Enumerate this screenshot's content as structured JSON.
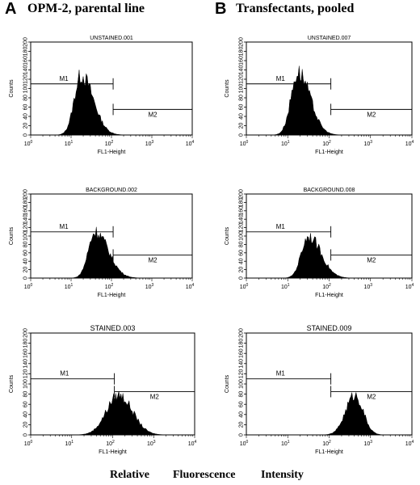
{
  "panel_labels": {
    "left_letter": "A",
    "left_title": "OPM-2, parental line",
    "right_letter": "B",
    "right_title": "Transfectants, pooled"
  },
  "footer": {
    "word1": "Relative",
    "word2": "Fluorescence",
    "word3": "Intensity"
  },
  "chart_data": [
    {
      "type": "histogram",
      "title": "UNSTAINED.001",
      "xlabel": "FL1-Height",
      "ylabel": "Counts",
      "x_scale": "log",
      "xlim": [
        1,
        10000
      ],
      "ylim": [
        0,
        200
      ],
      "yticks": [
        "0",
        "20",
        "40",
        "60",
        "80",
        "100",
        "120",
        "140",
        "160",
        "180",
        "200"
      ],
      "xticks": [
        {
          "base": "10",
          "exp": "0"
        },
        {
          "base": "10",
          "exp": "1"
        },
        {
          "base": "10",
          "exp": "2"
        },
        {
          "base": "10",
          "exp": "3"
        },
        {
          "base": "10",
          "exp": "4"
        }
      ],
      "peak": {
        "center_log10": 1.25,
        "height": 128,
        "width_left": 0.17,
        "width_right": 0.3
      },
      "gates": [
        {
          "name": "M1",
          "from": 1,
          "to": 110,
          "y": 110
        },
        {
          "name": "M2",
          "from": 110,
          "to": 10000,
          "y": 55
        }
      ]
    },
    {
      "type": "histogram",
      "title": "BACKGROUND.002",
      "xlabel": "FL1-Height",
      "ylabel": "Counts",
      "x_scale": "log",
      "xlim": [
        1,
        10000
      ],
      "ylim": [
        0,
        200
      ],
      "yticks": [
        "0",
        "20",
        "40",
        "60",
        "80",
        "100",
        "120",
        "140",
        "160",
        "180",
        "200"
      ],
      "xticks": [
        {
          "base": "10",
          "exp": "0"
        },
        {
          "base": "10",
          "exp": "1"
        },
        {
          "base": "10",
          "exp": "2"
        },
        {
          "base": "10",
          "exp": "3"
        },
        {
          "base": "10",
          "exp": "4"
        }
      ],
      "peak": {
        "center_log10": 1.6,
        "height": 110,
        "width_left": 0.17,
        "width_right": 0.32
      },
      "gates": [
        {
          "name": "M1",
          "from": 1,
          "to": 110,
          "y": 110
        },
        {
          "name": "M2",
          "from": 110,
          "to": 10000,
          "y": 55
        }
      ]
    },
    {
      "type": "histogram",
      "title": "STAINED.003",
      "xlabel": "FL1-Height",
      "ylabel": "Counts",
      "x_scale": "log",
      "xlim": [
        1,
        10000
      ],
      "ylim": [
        0,
        200
      ],
      "yticks": [
        "0",
        "20",
        "40",
        "60",
        "80",
        "100",
        "120",
        "140",
        "160",
        "180",
        "200"
      ],
      "xticks": [
        {
          "base": "10",
          "exp": "0"
        },
        {
          "base": "10",
          "exp": "1"
        },
        {
          "base": "10",
          "exp": "2"
        },
        {
          "base": "10",
          "exp": "3"
        },
        {
          "base": "10",
          "exp": "4"
        }
      ],
      "peak": {
        "center_log10": 2.15,
        "height": 78,
        "width_left": 0.3,
        "width_right": 0.33
      },
      "gates": [
        {
          "name": "M1",
          "from": 1,
          "to": 110,
          "y": 110
        },
        {
          "name": "M2",
          "from": 110,
          "to": 10000,
          "y": 85
        }
      ]
    },
    {
      "type": "histogram",
      "title": "UNSTAINED.007",
      "xlabel": "FL1-Height",
      "ylabel": "Counts",
      "x_scale": "log",
      "xlim": [
        1,
        10000
      ],
      "ylim": [
        0,
        200
      ],
      "yticks": [
        "0",
        "20",
        "40",
        "60",
        "80",
        "100",
        "120",
        "140",
        "160",
        "180",
        "200"
      ],
      "xticks": [
        {
          "base": "10",
          "exp": "0"
        },
        {
          "base": "10",
          "exp": "1"
        },
        {
          "base": "10",
          "exp": "2"
        },
        {
          "base": "10",
          "exp": "3"
        },
        {
          "base": "10",
          "exp": "4"
        }
      ],
      "peak": {
        "center_log10": 1.25,
        "height": 135,
        "width_left": 0.17,
        "width_right": 0.29
      },
      "gates": [
        {
          "name": "M1",
          "from": 1,
          "to": 110,
          "y": 110
        },
        {
          "name": "M2",
          "from": 110,
          "to": 10000,
          "y": 55
        }
      ]
    },
    {
      "type": "histogram",
      "title": "BACKGROUND.008",
      "xlabel": "FL1-Height",
      "ylabel": "Counts",
      "x_scale": "log",
      "xlim": [
        1,
        10000
      ],
      "ylim": [
        0,
        200
      ],
      "yticks": [
        "0",
        "20",
        "40",
        "60",
        "80",
        "100",
        "120",
        "140",
        "160",
        "180",
        "200"
      ],
      "xticks": [
        {
          "base": "10",
          "exp": "0"
        },
        {
          "base": "10",
          "exp": "1"
        },
        {
          "base": "10",
          "exp": "2"
        },
        {
          "base": "10",
          "exp": "3"
        },
        {
          "base": "10",
          "exp": "4"
        }
      ],
      "peak": {
        "center_log10": 1.5,
        "height": 100,
        "width_left": 0.17,
        "width_right": 0.3
      },
      "gates": [
        {
          "name": "M1",
          "from": 1,
          "to": 110,
          "y": 110
        },
        {
          "name": "M2",
          "from": 110,
          "to": 10000,
          "y": 55
        }
      ]
    },
    {
      "type": "histogram",
      "title": "STAINED.009",
      "xlabel": "FL1-Height",
      "ylabel": "Counts",
      "x_scale": "log",
      "xlim": [
        1,
        10000
      ],
      "ylim": [
        0,
        200
      ],
      "yticks": [
        "0",
        "20",
        "40",
        "60",
        "80",
        "100",
        "120",
        "140",
        "160",
        "180",
        "200"
      ],
      "xticks": [
        {
          "base": "10",
          "exp": "0"
        },
        {
          "base": "10",
          "exp": "1"
        },
        {
          "base": "10",
          "exp": "2"
        },
        {
          "base": "10",
          "exp": "3"
        },
        {
          "base": "10",
          "exp": "4"
        }
      ],
      "peak": {
        "center_log10": 2.62,
        "height": 78,
        "width_left": 0.22,
        "width_right": 0.2
      },
      "gates": [
        {
          "name": "M1",
          "from": 1,
          "to": 110,
          "y": 110
        },
        {
          "name": "M2",
          "from": 110,
          "to": 10000,
          "y": 85
        }
      ]
    }
  ]
}
